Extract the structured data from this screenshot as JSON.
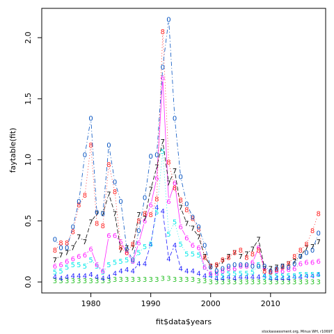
{
  "footnote": "stockassessment.org, Minus WH, r10697",
  "chart_data": {
    "type": "line",
    "title": "",
    "xlabel": "fit$data$years",
    "ylabel": "faytable(fit)",
    "xlim": [
      1971.8,
      2019.2
    ],
    "ylim": [
      -0.09,
      2.24
    ],
    "x_ticks": [
      1980,
      1990,
      2000,
      2010
    ],
    "x_tick_labels": [
      "1980",
      "1990",
      "2000",
      "2010"
    ],
    "y_ticks": [
      0.0,
      0.5,
      1.0,
      1.5,
      2.0
    ],
    "y_tick_labels": [
      "0.0",
      "0.5",
      "1.0",
      "1.5",
      "2.0"
    ],
    "grid": false,
    "legend": "none",
    "x": [
      1974,
      1975,
      1976,
      1977,
      1978,
      1979,
      1980,
      1981,
      1982,
      1983,
      1984,
      1985,
      1986,
      1987,
      1988,
      1989,
      1990,
      1991,
      1992,
      1993,
      1994,
      1995,
      1996,
      1997,
      1998,
      1999,
      2000,
      2001,
      2002,
      2003,
      2004,
      2005,
      2006,
      2007,
      2008,
      2009,
      2010,
      2011,
      2012,
      2013,
      2014,
      2015,
      2016,
      2017,
      2018
    ],
    "series": [
      {
        "symbol": "3",
        "color": "#22c022",
        "lty": "solid",
        "values": [
          0.01,
          0.01,
          0.01,
          0.01,
          0.01,
          0.01,
          0.01,
          0.01,
          0.01,
          0.01,
          0.02,
          0.02,
          0.02,
          0.02,
          0.02,
          0.02,
          0.02,
          0.02,
          0.03,
          0.03,
          0.02,
          0.02,
          0.02,
          0.02,
          0.01,
          0.01,
          0.0,
          0.0,
          0.0,
          0.0,
          0.0,
          0.0,
          0.0,
          0.0,
          0.0,
          0.0,
          0.0,
          0.0,
          0.0,
          0.0,
          0.0,
          0.0,
          0.0,
          0.0,
          0.0
        ]
      },
      {
        "symbol": "4",
        "color": "#2020ff",
        "lty": "longdash",
        "values": [
          0.04,
          0.03,
          0.04,
          0.05,
          0.05,
          0.05,
          0.06,
          0.04,
          0.03,
          0.04,
          0.07,
          0.09,
          0.1,
          0.09,
          0.15,
          0.15,
          0.31,
          0.61,
          0.58,
          0.19,
          0.3,
          0.11,
          0.09,
          0.09,
          0.07,
          0.05,
          0.05,
          0.03,
          0.03,
          0.04,
          0.03,
          0.04,
          0.04,
          0.04,
          0.04,
          0.05,
          0.03,
          0.03,
          0.03,
          0.03,
          0.04,
          0.04,
          0.05,
          0.05,
          0.06
        ]
      },
      {
        "symbol": "5",
        "color": "#00e8e8",
        "lty": "dotted",
        "values": [
          0.08,
          0.09,
          0.12,
          0.14,
          0.14,
          0.13,
          0.18,
          0.13,
          0.08,
          0.14,
          0.16,
          0.17,
          0.18,
          0.17,
          0.24,
          0.29,
          0.31,
          0.57,
          1.07,
          0.39,
          0.49,
          0.31,
          0.23,
          0.23,
          0.22,
          0.12,
          0.06,
          0.06,
          0.05,
          0.07,
          0.07,
          0.07,
          0.07,
          0.08,
          0.14,
          0.04,
          0.04,
          0.05,
          0.05,
          0.05,
          0.05,
          0.06,
          0.06,
          0.06,
          0.06
        ]
      },
      {
        "symbol": "6",
        "color": "#ff20ff",
        "lty": "solid",
        "values": [
          0.13,
          0.14,
          0.17,
          0.19,
          0.21,
          0.22,
          0.27,
          0.14,
          0.09,
          0.38,
          0.38,
          0.33,
          0.24,
          0.17,
          0.32,
          0.5,
          0.63,
          0.85,
          1.67,
          0.66,
          0.81,
          0.45,
          0.36,
          0.3,
          0.28,
          0.12,
          0.07,
          0.07,
          0.09,
          0.11,
          0.11,
          0.13,
          0.13,
          0.16,
          0.28,
          0.11,
          0.08,
          0.09,
          0.09,
          0.1,
          0.11,
          0.15,
          0.16,
          0.16,
          0.17
        ]
      },
      {
        "symbol": "7",
        "color": "#000000",
        "lty": "longdash",
        "values": [
          0.18,
          0.22,
          0.24,
          0.28,
          0.37,
          0.33,
          0.49,
          0.56,
          0.56,
          0.72,
          0.56,
          0.26,
          0.28,
          0.28,
          0.55,
          0.52,
          0.76,
          0.94,
          1.15,
          0.81,
          0.91,
          0.61,
          0.48,
          0.44,
          0.37,
          0.21,
          0.13,
          0.13,
          0.17,
          0.21,
          0.24,
          0.21,
          0.23,
          0.27,
          0.35,
          0.11,
          0.11,
          0.12,
          0.13,
          0.15,
          0.17,
          0.21,
          0.28,
          0.29,
          0.33
        ]
      },
      {
        "symbol": "8",
        "color": "#ff2020",
        "lty": "dotted",
        "values": [
          0.26,
          0.32,
          0.32,
          0.41,
          0.63,
          0.71,
          1.12,
          0.48,
          0.46,
          0.96,
          0.74,
          0.28,
          0.24,
          0.31,
          0.5,
          0.56,
          0.55,
          0.68,
          2.05,
          0.98,
          0.77,
          0.67,
          0.59,
          0.52,
          0.43,
          0.2,
          0.13,
          0.14,
          0.18,
          0.2,
          0.24,
          0.26,
          0.2,
          0.23,
          0.26,
          0.09,
          0.08,
          0.1,
          0.12,
          0.15,
          0.21,
          0.26,
          0.31,
          0.42,
          0.56
        ]
      },
      {
        "symbol": "0",
        "color": "#0050c0",
        "lty": "dotdash",
        "values": [
          0.35,
          0.28,
          0.28,
          0.45,
          0.66,
          1.04,
          1.34,
          0.57,
          0.56,
          1.12,
          0.82,
          0.66,
          0.27,
          0.18,
          0.42,
          0.69,
          1.03,
          1.04,
          1.76,
          2.15,
          1.34,
          0.86,
          0.64,
          0.53,
          0.45,
          0.3,
          0.12,
          0.09,
          0.11,
          0.13,
          0.14,
          0.14,
          0.14,
          0.13,
          0.13,
          0.13,
          0.09,
          0.11,
          0.13,
          0.12,
          0.15,
          0.21,
          0.24,
          0.26,
          0.4
        ]
      }
    ]
  }
}
